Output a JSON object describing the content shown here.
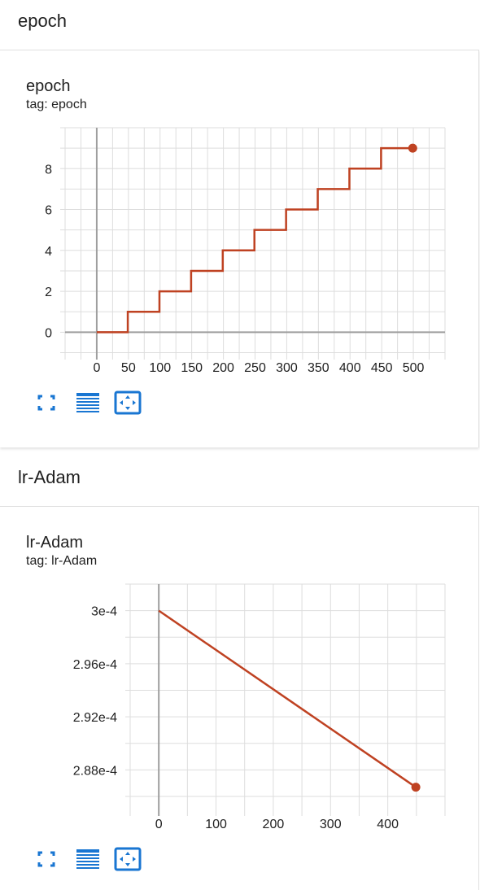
{
  "sections": [
    {
      "heading": "epoch",
      "card": {
        "title": "epoch",
        "tag": "tag: epoch"
      }
    },
    {
      "heading": "lr-Adam",
      "card": {
        "title": "lr-Adam",
        "tag": "tag: lr-Adam"
      }
    }
  ],
  "toolbar": {
    "icons": [
      "fullscreen-icon",
      "data-table-icon",
      "fit-domain-icon"
    ]
  },
  "colors": {
    "series": "#bf4222",
    "grid": "#dddddd",
    "axis": "#9e9e9e",
    "toolbar_icon": "#1976d2"
  },
  "chart_data": [
    {
      "type": "line",
      "title": "epoch",
      "subtitle": "tag: epoch",
      "xlabel": "",
      "ylabel": "",
      "x_ticks": [
        0,
        50,
        100,
        150,
        200,
        250,
        300,
        350,
        400,
        450,
        500
      ],
      "y_ticks": [
        0,
        2,
        4,
        6,
        8
      ],
      "xlim": [
        -50,
        550
      ],
      "ylim": [
        -1.1,
        10
      ],
      "grid": true,
      "step": true,
      "series": [
        {
          "x": [
            0,
            49,
            99,
            149,
            199,
            249,
            299,
            349,
            399,
            449,
            499
          ],
          "y": [
            0,
            1,
            2,
            3,
            4,
            5,
            6,
            7,
            8,
            9,
            9
          ]
        }
      ]
    },
    {
      "type": "line",
      "title": "lr-Adam",
      "subtitle": "tag: lr-Adam",
      "xlabel": "",
      "ylabel": "",
      "x_ticks": [
        0,
        100,
        200,
        300,
        400
      ],
      "x_tick_labels": [
        "0",
        "100",
        "200",
        "300",
        "400"
      ],
      "y_ticks": [
        0.000288,
        0.000292,
        0.000296,
        0.0003
      ],
      "y_tick_labels": [
        "2.88e-4",
        "2.92e-4",
        "2.96e-4",
        "3e-4"
      ],
      "xlim": [
        -50,
        500
      ],
      "ylim": [
        0.0002849,
        0.000302
      ],
      "grid": true,
      "step": false,
      "series": [
        {
          "x": [
            0,
            449
          ],
          "y": [
            0.0003,
            0.0002867
          ]
        }
      ]
    }
  ]
}
